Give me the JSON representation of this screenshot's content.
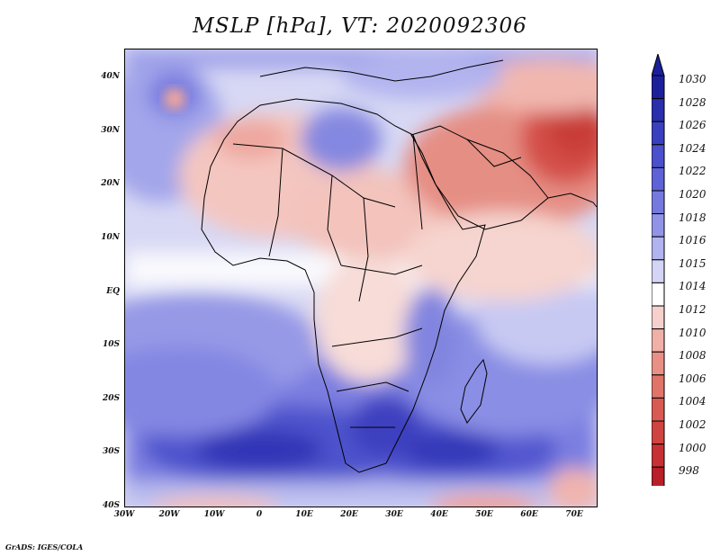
{
  "title": "MSLP [hPa], VT: 2020092306",
  "footer": "GrADS: IGES/COLA",
  "axes": {
    "lat_labels": [
      "40N",
      "30N",
      "20N",
      "10N",
      "EQ",
      "10S",
      "20S",
      "30S",
      "40S"
    ],
    "lon_labels": [
      "30W",
      "20W",
      "10W",
      "0",
      "10E",
      "20E",
      "30E",
      "40E",
      "50E",
      "60E",
      "70E"
    ]
  },
  "colorbar": {
    "levels": [
      "1030",
      "1028",
      "1026",
      "1024",
      "1022",
      "1020",
      "1018",
      "1016",
      "1015",
      "1014",
      "1012",
      "1010",
      "1008",
      "1006",
      "1004",
      "1002",
      "1000",
      "998"
    ],
    "colors": [
      "#1c1f9a",
      "#2a2fae",
      "#3a3fc0",
      "#4b50cc",
      "#5e62d6",
      "#7579de",
      "#9194e6",
      "#b1b3ee",
      "#d3d4f6",
      "#ffffff",
      "#f5d0cc",
      "#f0b0a8",
      "#e99086",
      "#e07468",
      "#d85a52",
      "#cf4440",
      "#c73034",
      "#b81f28"
    ],
    "top_arrow_color": "#1c1f9a",
    "bottom_arrow_color": "#b81f28"
  },
  "map": {
    "projection": "lat-lon",
    "lon_range": [
      "30W",
      "75E"
    ],
    "lat_range": [
      "40S",
      "45N"
    ],
    "field": "mean sea level pressure"
  }
}
